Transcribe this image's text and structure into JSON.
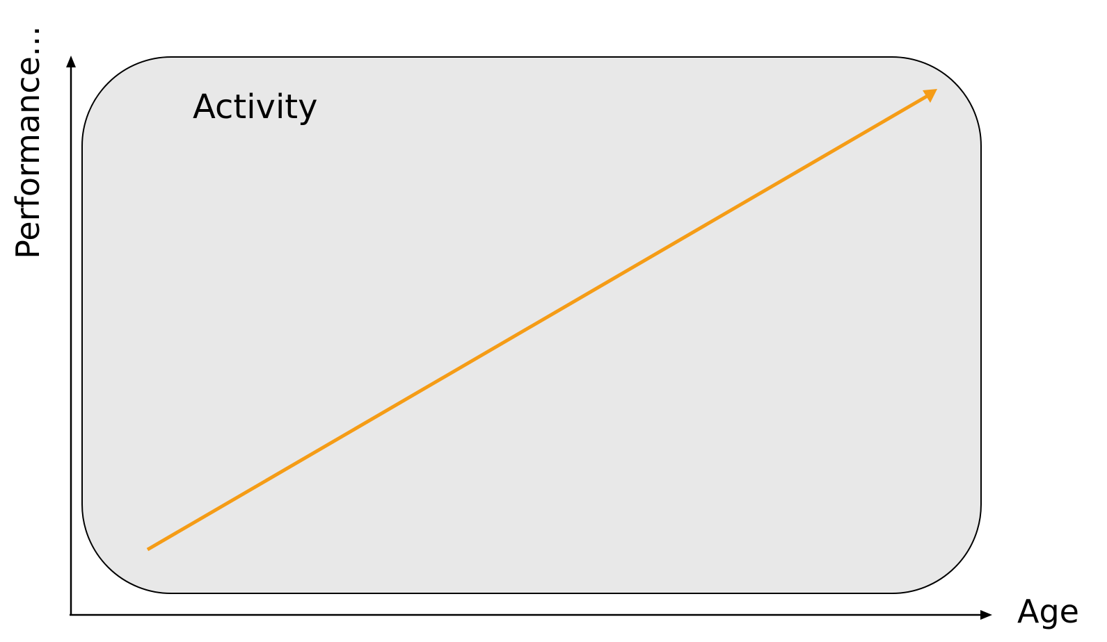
{
  "axes": {
    "y_label": "Performance...",
    "x_label": "Age"
  },
  "region": {
    "label": "Activity",
    "fill": "#e8e8e8",
    "border": "#000000"
  },
  "trend": {
    "direction": "increasing",
    "color": "#f59c16"
  }
}
